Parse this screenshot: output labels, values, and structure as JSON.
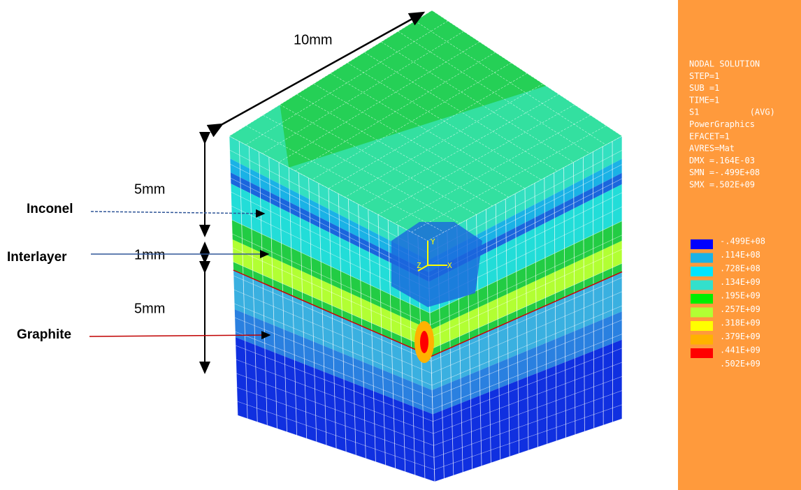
{
  "dimensions": {
    "width": "10mm",
    "inconel_thickness": "5mm",
    "interlayer_thickness": "1mm",
    "graphite_thickness": "5mm"
  },
  "materials": {
    "inconel": "Inconel",
    "interlayer": "Interlayer",
    "graphite": "Graphite"
  },
  "triad": {
    "y": "Y",
    "z": "Z",
    "x": "X"
  },
  "legend": {
    "header": [
      "NODAL SOLUTION",
      "STEP=1",
      "SUB =1",
      "TIME=1",
      "S1          (AVG)",
      "PowerGraphics",
      "EFACET=1",
      "AVRES=Mat",
      "DMX =.164E-03",
      "SMN =-.499E+08",
      "SMX =.502E+09"
    ],
    "values": [
      "-.499E+08",
      ".114E+08",
      ".728E+08",
      ".134E+09",
      ".195E+09",
      ".257E+09",
      ".318E+09",
      ".379E+09",
      ".441E+09",
      ".502E+09"
    ]
  }
}
